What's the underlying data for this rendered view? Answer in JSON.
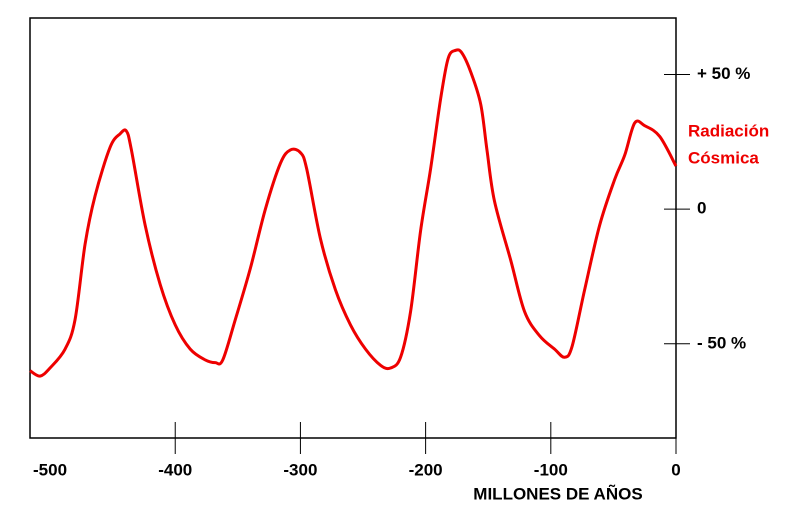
{
  "chart_data": {
    "type": "line",
    "xlabel": "MILLONES DE AÑOS",
    "ylabel_lines": [
      "Radiación",
      "Cósmica"
    ],
    "x": [
      -516,
      -508,
      -500,
      -488,
      -480,
      -472,
      -464,
      -452,
      -444,
      -439,
      -435,
      -424,
      -412,
      -400,
      -388,
      -376,
      -368,
      -362,
      -352,
      -340,
      -328,
      -316,
      -308,
      -300,
      -295,
      -284,
      -272,
      -260,
      -248,
      -236,
      -228,
      -220,
      -212,
      -204,
      -196,
      -188,
      -182,
      -176,
      -171,
      -164,
      -156,
      -151,
      -145,
      -132,
      -121,
      -109,
      -97,
      -89,
      -83,
      -73,
      -61,
      -49,
      -41,
      -33,
      -25,
      -13,
      0
    ],
    "series": [
      {
        "color": "#ee0000",
        "values": [
          -60,
          -62,
          -59,
          -52,
          -41,
          -13,
          5,
          23,
          28,
          29,
          22,
          -6,
          -28,
          -43,
          -52,
          -56,
          -57,
          -56,
          -41,
          -22,
          0,
          17,
          22,
          21,
          15,
          -11,
          -30,
          -43,
          -52,
          -58,
          -59,
          -55,
          -38,
          -8,
          15,
          41,
          56,
          59,
          58,
          51,
          39,
          22,
          3,
          -19,
          -38,
          -47,
          -52,
          -55,
          -51,
          -30,
          -6,
          11,
          20,
          32,
          31,
          27,
          16
        ]
      }
    ],
    "xlim": [
      -516,
      0
    ],
    "xticks": [
      -500,
      -400,
      -300,
      -200,
      -100,
      0
    ],
    "ylim": [
      -85,
      71
    ],
    "yticks": [
      {
        "value": 50,
        "label": "+ 50 %"
      },
      0,
      {
        "value": -50,
        "label": "- 50 %"
      }
    ]
  }
}
